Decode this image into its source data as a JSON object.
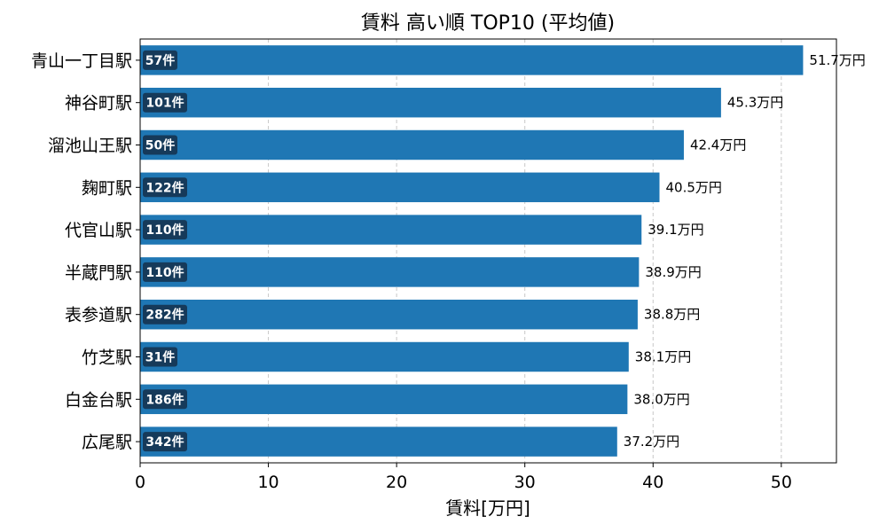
{
  "chart_data": {
    "type": "bar",
    "orientation": "horizontal",
    "title": "賃料 高い順 TOP10 (平均値)",
    "xlabel": "賃料[万円]",
    "ylabel": "",
    "xlim": [
      0,
      54.3
    ],
    "xticks": [
      0,
      10,
      20,
      30,
      40,
      50
    ],
    "grid": "x-dashed",
    "bar_color": "#1f77b4",
    "count_badge_color": "#163a5a",
    "value_unit": "万円",
    "categories": [
      "青山一丁目駅",
      "神谷町駅",
      "溜池山王駅",
      "麹町駅",
      "代官山駅",
      "半蔵門駅",
      "表参道駅",
      "竹芝駅",
      "白金台駅",
      "広尾駅"
    ],
    "values": [
      51.7,
      45.3,
      42.4,
      40.5,
      39.1,
      38.9,
      38.8,
      38.1,
      38.0,
      37.2
    ],
    "value_labels": [
      "51.7万円",
      "45.3万円",
      "42.4万円",
      "40.5万円",
      "39.1万円",
      "38.9万円",
      "38.8万円",
      "38.1万円",
      "38.0万円",
      "37.2万円"
    ],
    "count_labels": [
      "57件",
      "101件",
      "50件",
      "122件",
      "110件",
      "110件",
      "282件",
      "31件",
      "186件",
      "342件"
    ]
  }
}
